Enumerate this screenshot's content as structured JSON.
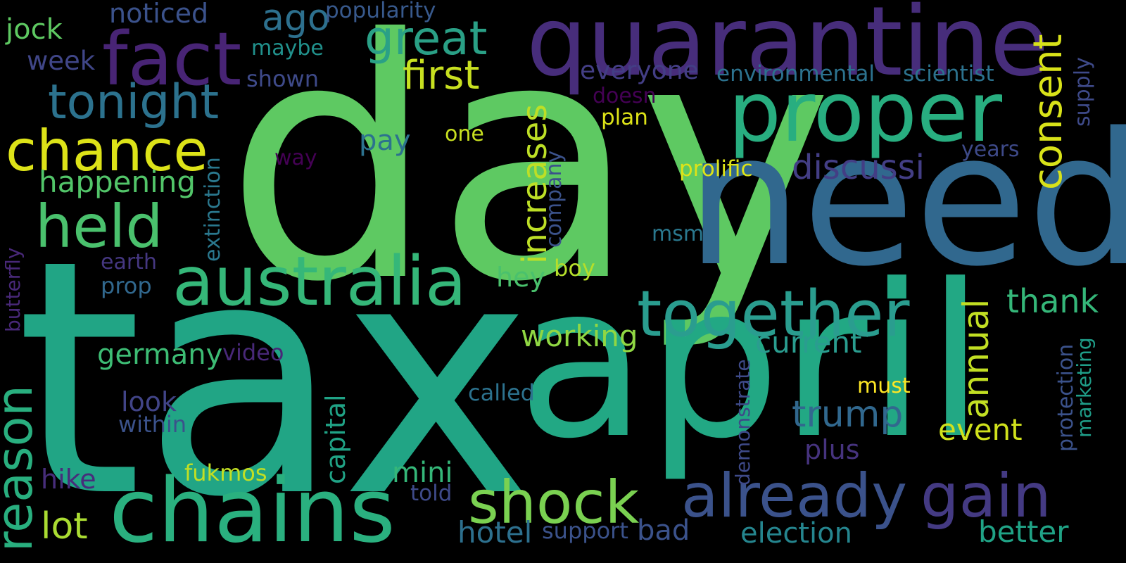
{
  "words": [
    {
      "key": "tax",
      "text": "tax",
      "color": "#21a585"
    },
    {
      "key": "day",
      "text": "day",
      "color": "#5ec962"
    },
    {
      "key": "april",
      "text": "april",
      "color": "#22a884"
    },
    {
      "key": "need",
      "text": "need",
      "color": "#31688e"
    },
    {
      "key": "quarantine",
      "text": "quarantine",
      "color": "#472d7b"
    },
    {
      "key": "proper",
      "text": "proper",
      "color": "#28ae80"
    },
    {
      "key": "fact",
      "text": "fact",
      "color": "#482475"
    },
    {
      "key": "chains",
      "text": "chains",
      "color": "#2ab07f"
    },
    {
      "key": "australia",
      "text": "australia",
      "color": "#35b779"
    },
    {
      "key": "together",
      "text": "together",
      "color": "#2a9d8f"
    },
    {
      "key": "already",
      "text": "already",
      "color": "#3b528b"
    },
    {
      "key": "gain",
      "text": "gain",
      "color": "#443a83"
    },
    {
      "key": "shock",
      "text": "shock",
      "color": "#7ad151"
    },
    {
      "key": "chance",
      "text": "chance",
      "color": "#dde318"
    },
    {
      "key": "held",
      "text": "held",
      "color": "#4ac16d"
    },
    {
      "key": "tonight",
      "text": "tonight",
      "color": "#2c728e"
    },
    {
      "key": "reason",
      "text": "reason",
      "color": "#29af7f"
    },
    {
      "key": "great",
      "text": "great",
      "color": "#2aa086"
    },
    {
      "key": "consent",
      "text": "consent",
      "color": "#d8e219"
    },
    {
      "key": "first",
      "text": "first",
      "color": "#c8e020"
    },
    {
      "key": "discussi",
      "text": "discussi",
      "color": "#433e85"
    },
    {
      "key": "increases",
      "text": "increases",
      "color": "#bddf26"
    },
    {
      "key": "happening",
      "text": "happening",
      "color": "#52c569"
    },
    {
      "key": "ago",
      "text": "ago",
      "color": "#2d708e"
    },
    {
      "key": "trump",
      "text": "trump",
      "color": "#31688e"
    },
    {
      "key": "current",
      "text": "current",
      "color": "#2a9d8f"
    },
    {
      "key": "annual",
      "text": "annual",
      "color": "#c2df23"
    },
    {
      "key": "thank",
      "text": "thank",
      "color": "#35b779"
    },
    {
      "key": "event",
      "text": "event",
      "color": "#d0e11c"
    },
    {
      "key": "better",
      "text": "better",
      "color": "#20a386"
    },
    {
      "key": "election",
      "text": "election",
      "color": "#25858e"
    },
    {
      "key": "working",
      "text": "working",
      "color": "#90d743"
    },
    {
      "key": "germany",
      "text": "germany",
      "color": "#3dbc74"
    },
    {
      "key": "lot",
      "text": "lot",
      "color": "#aadc32"
    },
    {
      "key": "hotel",
      "text": "hotel",
      "color": "#2d708e"
    },
    {
      "key": "jock",
      "text": "jock",
      "color": "#5ec962"
    },
    {
      "key": "noticed",
      "text": "noticed",
      "color": "#3b528b"
    },
    {
      "key": "popularity",
      "text": "popularity",
      "color": "#38598c"
    },
    {
      "key": "maybe",
      "text": "maybe",
      "color": "#21918c"
    },
    {
      "key": "week",
      "text": "week",
      "color": "#404688"
    },
    {
      "key": "shown",
      "text": "shown",
      "color": "#3e4a89"
    },
    {
      "key": "everyone",
      "text": "everyone",
      "color": "#433e85"
    },
    {
      "key": "environmental",
      "text": "environmental",
      "color": "#2c728e"
    },
    {
      "key": "scientist",
      "text": "scientist",
      "color": "#2c728e"
    },
    {
      "key": "supply",
      "text": "supply",
      "color": "#3e4a89"
    },
    {
      "key": "doesn",
      "text": "doesn",
      "color": "#440154"
    },
    {
      "key": "plan",
      "text": "plan",
      "color": "#dde318"
    },
    {
      "key": "years",
      "text": "years",
      "color": "#3e4a89"
    },
    {
      "key": "pay",
      "text": "pay",
      "color": "#2c728e"
    },
    {
      "key": "one",
      "text": "one",
      "color": "#c8e020"
    },
    {
      "key": "way",
      "text": "way",
      "color": "#440154"
    },
    {
      "key": "company",
      "text": "company",
      "color": "#3b528b"
    },
    {
      "key": "prolific",
      "text": "prolific",
      "color": "#dde318"
    },
    {
      "key": "extinction",
      "text": "extinction",
      "color": "#2a788e"
    },
    {
      "key": "msm",
      "text": "msm",
      "color": "#2a788e"
    },
    {
      "key": "butterfly",
      "text": "butterfly",
      "color": "#482878"
    },
    {
      "key": "earth",
      "text": "earth",
      "color": "#453781"
    },
    {
      "key": "prop",
      "text": "prop",
      "color": "#31688e"
    },
    {
      "key": "hey",
      "text": "hey",
      "color": "#4ac16d"
    },
    {
      "key": "boy",
      "text": "boy",
      "color": "#b5de2b"
    },
    {
      "key": "video",
      "text": "video",
      "color": "#482878"
    },
    {
      "key": "look",
      "text": "look",
      "color": "#414487"
    },
    {
      "key": "within",
      "text": "within",
      "color": "#3b528b"
    },
    {
      "key": "capital",
      "text": "capital",
      "color": "#20a386"
    },
    {
      "key": "called",
      "text": "called",
      "color": "#2c728e"
    },
    {
      "key": "must",
      "text": "must",
      "color": "#fde725"
    },
    {
      "key": "demonstrate",
      "text": "demonstrate",
      "color": "#3e4a89"
    },
    {
      "key": "protection",
      "text": "protection",
      "color": "#3b528b"
    },
    {
      "key": "marketing",
      "text": "marketing",
      "color": "#1f9e89"
    },
    {
      "key": "plus",
      "text": "plus",
      "color": "#46337e"
    },
    {
      "key": "hike",
      "text": "hike",
      "color": "#472d7b"
    },
    {
      "key": "fukmos",
      "text": "fukmos",
      "color": "#c2df23"
    },
    {
      "key": "mini",
      "text": "mini",
      "color": "#35b779"
    },
    {
      "key": "told",
      "text": "told",
      "color": "#3e4a89"
    },
    {
      "key": "support",
      "text": "support",
      "color": "#3b528b"
    },
    {
      "key": "bad",
      "text": "bad",
      "color": "#3b528b"
    }
  ]
}
